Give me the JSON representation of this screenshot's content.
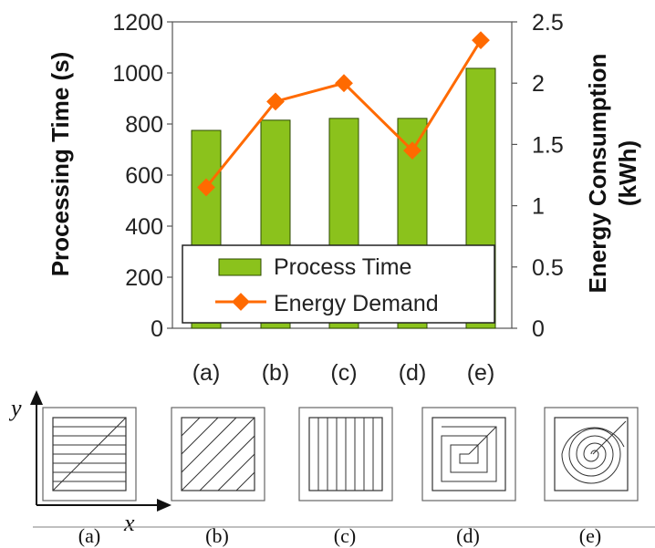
{
  "chart_data": {
    "type": "bar",
    "categories": [
      "(a)",
      "(b)",
      "(c)",
      "(d)",
      "(e)"
    ],
    "series": [
      {
        "name": "Process Time",
        "type": "bar",
        "axis": "left",
        "values": [
          775,
          815,
          822,
          822,
          1018
        ],
        "color": "#8bc21c"
      },
      {
        "name": "Energy Demand",
        "type": "line",
        "axis": "right",
        "values": [
          1.15,
          1.85,
          2.0,
          1.45,
          2.35
        ],
        "color": "#ff6a00"
      }
    ],
    "title": "",
    "xlabel": "",
    "ylabel": "Processing Time (s)",
    "y2label_line1": "Energy Consumption",
    "y2label_line2": "(kWh)",
    "ylim": [
      0,
      1200
    ],
    "y2lim": [
      0,
      2.5
    ],
    "yticks": [
      "0",
      "200",
      "400",
      "600",
      "800",
      "1000",
      "1200"
    ],
    "y2ticks": [
      "0",
      "0.5",
      "1",
      "1.5",
      "2",
      "2.5"
    ],
    "grid": false,
    "legend_position": "bottom-center, inside plot"
  },
  "toolpaths": {
    "y_axis_letter": "y",
    "x_axis_letter": "x",
    "items": [
      {
        "label": "(a)",
        "pattern": "zigzag-horizontal"
      },
      {
        "label": "(b)",
        "pattern": "diagonal-parallel"
      },
      {
        "label": "(c)",
        "pattern": "vertical-parallel"
      },
      {
        "label": "(d)",
        "pattern": "square-spiral"
      },
      {
        "label": "(e)",
        "pattern": "round-spiral"
      }
    ]
  }
}
